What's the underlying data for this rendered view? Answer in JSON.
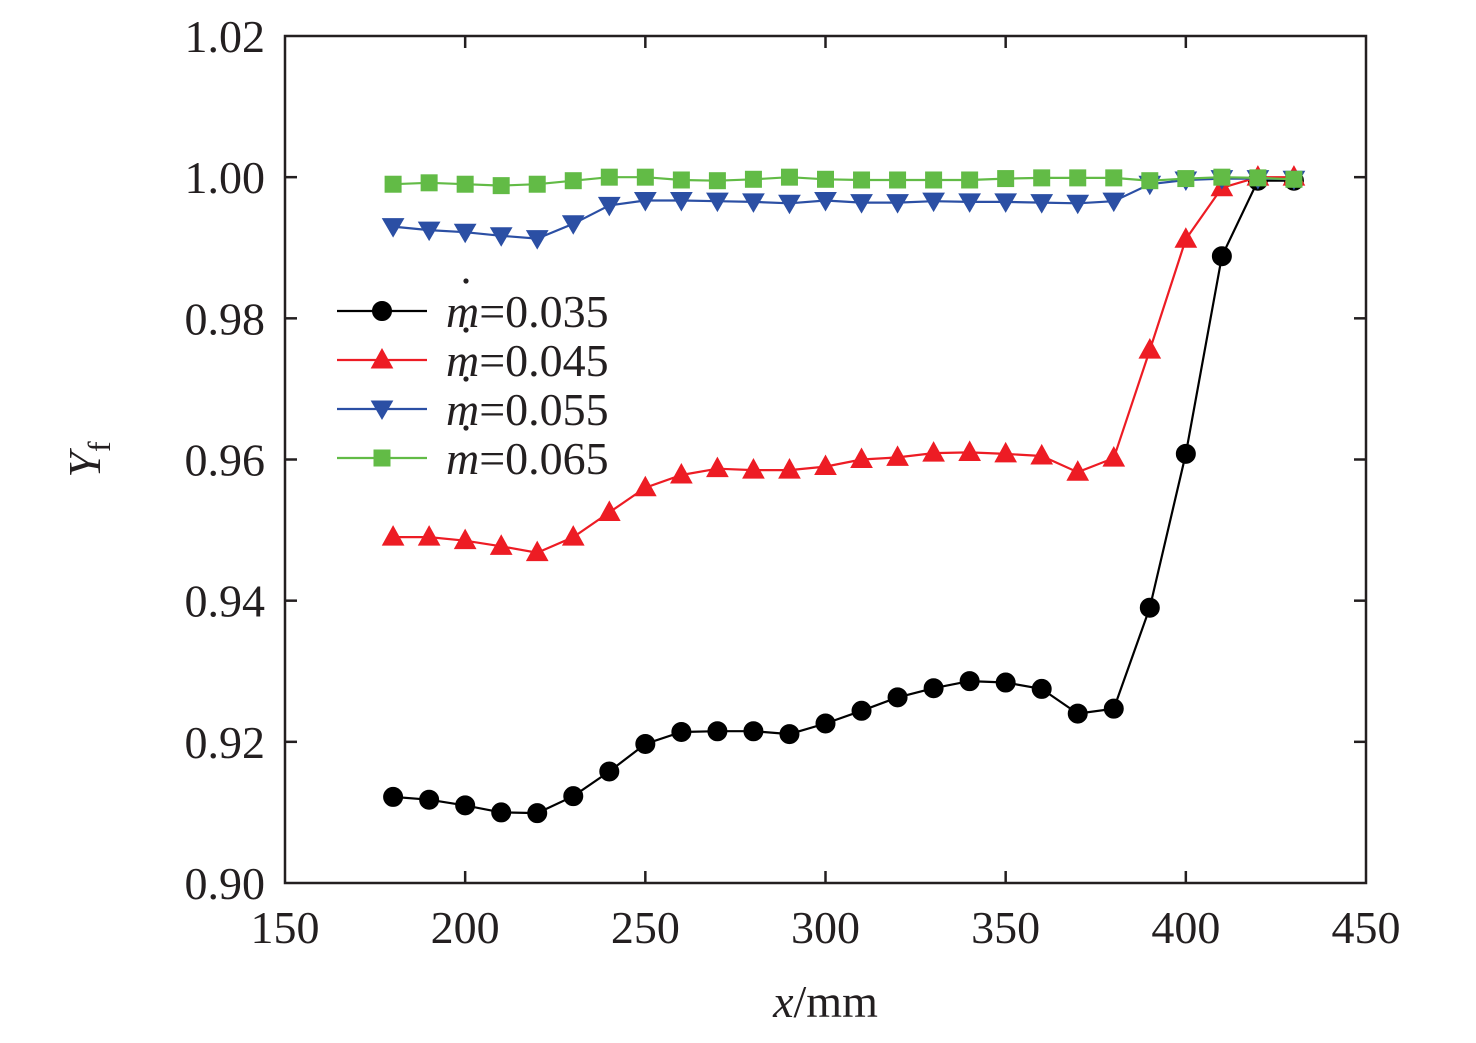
{
  "chart_data": {
    "type": "line",
    "xlabel": {
      "var": "x",
      "unit": "/mm"
    },
    "ylabel": {
      "var": "Y",
      "sub": "f"
    },
    "xlim": [
      150,
      450
    ],
    "ylim": [
      0.9,
      1.02
    ],
    "xticks": [
      "150",
      "200",
      "250",
      "300",
      "350",
      "400",
      "450"
    ],
    "yticks": [
      "0.90",
      "0.92",
      "0.94",
      "0.96",
      "0.98",
      "1.00",
      "1.02"
    ],
    "grid": false,
    "legend_position": "left-middle",
    "x": [
      180,
      190,
      200,
      210,
      220,
      230,
      240,
      250,
      260,
      270,
      280,
      290,
      300,
      310,
      320,
      330,
      340,
      350,
      360,
      370,
      380,
      390,
      400,
      410,
      420,
      430
    ],
    "series": [
      {
        "name": "=0.035",
        "symbol": "m",
        "color": "#000000",
        "marker": "circle",
        "values": [
          0.9122,
          0.9118,
          0.911,
          0.91,
          0.9099,
          0.9123,
          0.9158,
          0.9197,
          0.9214,
          0.9215,
          0.9215,
          0.9211,
          0.9226,
          0.9244,
          0.9263,
          0.9276,
          0.9286,
          0.9284,
          0.9275,
          0.924,
          0.9247,
          0.939,
          0.9608,
          0.9888,
          0.9995,
          0.9995
        ]
      },
      {
        "name": "=0.045",
        "symbol": "m",
        "color": "#ed1c24",
        "marker": "triangle-up",
        "values": [
          0.949,
          0.949,
          0.9485,
          0.9477,
          0.9468,
          0.949,
          0.9525,
          0.956,
          0.9578,
          0.9587,
          0.9585,
          0.9585,
          0.959,
          0.96,
          0.9603,
          0.9609,
          0.961,
          0.9608,
          0.9605,
          0.9582,
          0.9602,
          0.9755,
          0.9912,
          0.9985,
          1.0,
          1.0
        ]
      },
      {
        "name": "=0.055",
        "symbol": "m",
        "color": "#2b4fa4",
        "marker": "triangle-down",
        "values": [
          0.993,
          0.9925,
          0.9922,
          0.9917,
          0.9913,
          0.9934,
          0.996,
          0.9967,
          0.9967,
          0.9966,
          0.9965,
          0.9963,
          0.9967,
          0.9964,
          0.9964,
          0.9966,
          0.9965,
          0.9965,
          0.9964,
          0.9963,
          0.9966,
          0.999,
          0.9996,
          0.9998,
          0.9998,
          0.9997
        ]
      },
      {
        "name": "=0.065",
        "symbol": "m",
        "color": "#62bb46",
        "marker": "square",
        "values": [
          0.999,
          0.9992,
          0.999,
          0.9988,
          0.999,
          0.9995,
          1.0,
          1.0,
          0.9996,
          0.9995,
          0.9997,
          1.0,
          0.9997,
          0.9996,
          0.9996,
          0.9996,
          0.9996,
          0.9998,
          0.9999,
          0.9999,
          0.9999,
          0.9995,
          0.9998,
          1.0,
          0.9999,
          0.9997
        ]
      }
    ]
  }
}
